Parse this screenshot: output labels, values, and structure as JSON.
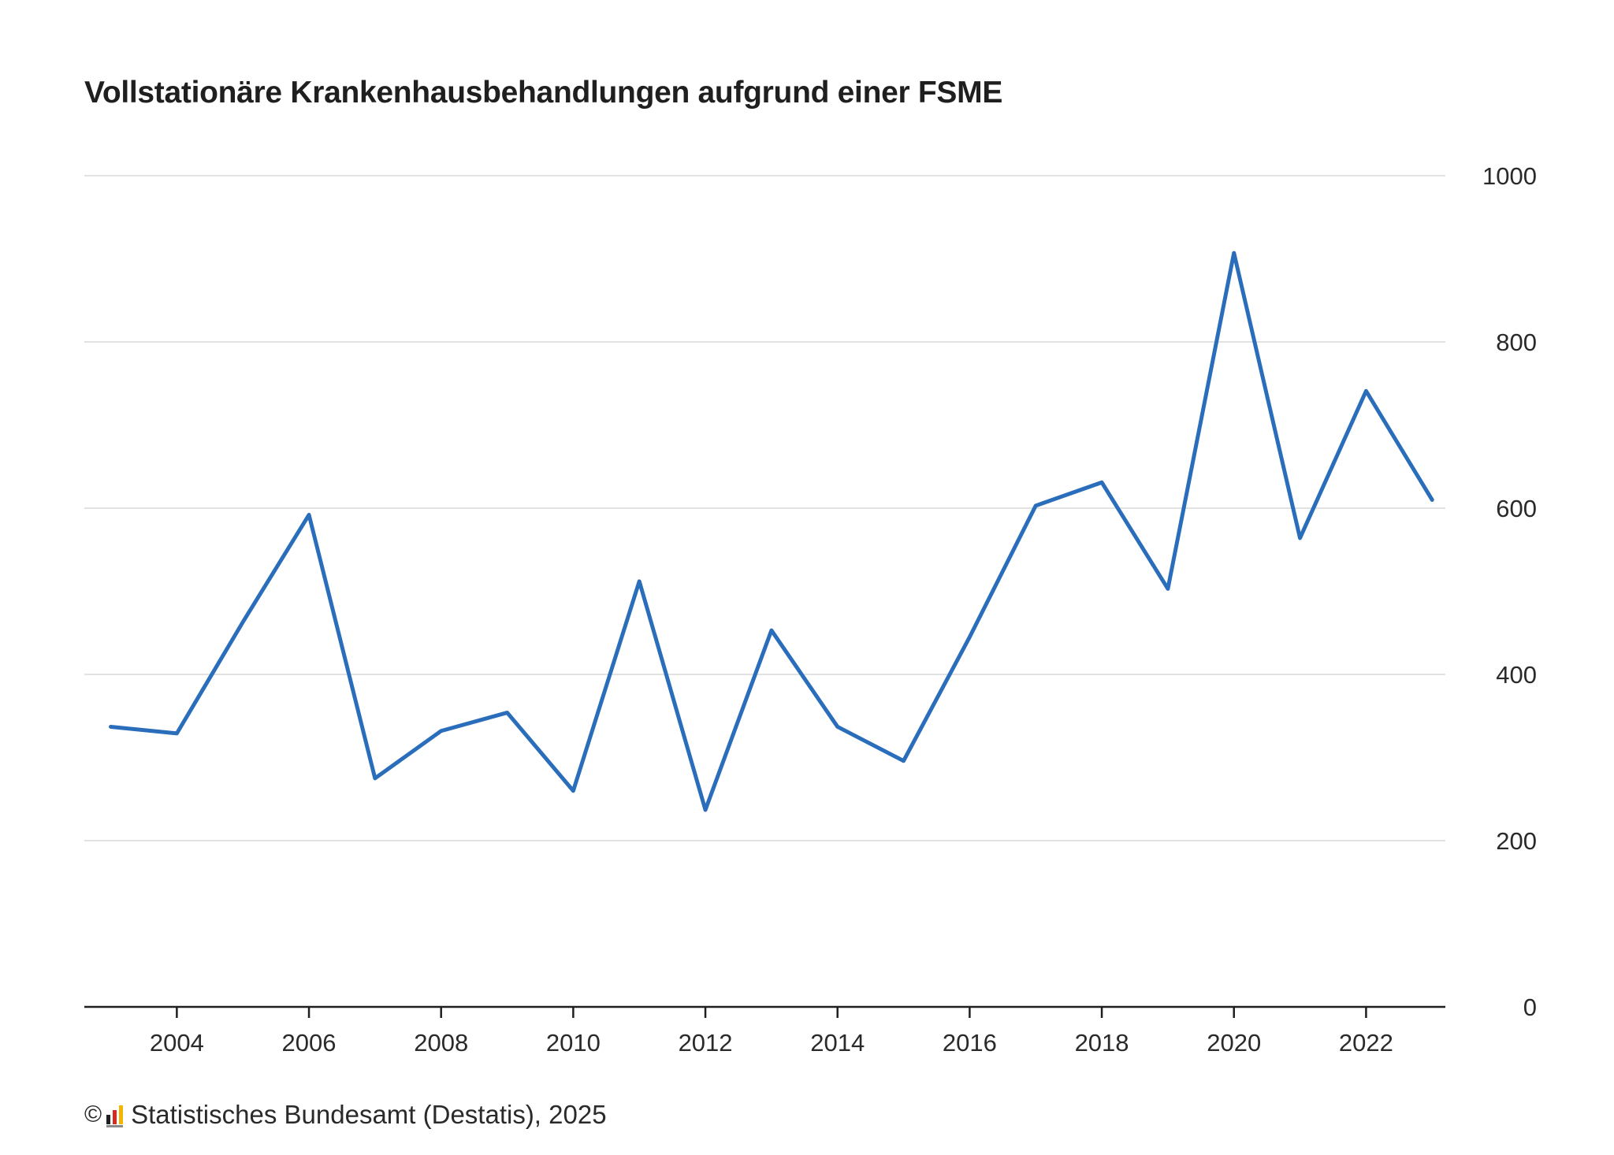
{
  "chart_data": {
    "type": "line",
    "title": "Vollstationäre Krankenhausbehandlungen aufgrund einer FSME",
    "xlabel": "",
    "ylabel": "",
    "x": [
      2003,
      2004,
      2005,
      2006,
      2007,
      2008,
      2009,
      2010,
      2011,
      2012,
      2013,
      2014,
      2015,
      2016,
      2017,
      2018,
      2019,
      2020,
      2021,
      2022,
      2023
    ],
    "x_ticks": [
      "2004",
      "2006",
      "2008",
      "2010",
      "2012",
      "2014",
      "2016",
      "2018",
      "2020",
      "2022"
    ],
    "y_ticks": [
      "0",
      "200",
      "400",
      "600",
      "800",
      "1000"
    ],
    "ylim": [
      0,
      1000
    ],
    "xlim": [
      2002.6,
      2023.2
    ],
    "y_axis_position": "right",
    "grid": "horizontal",
    "series": [
      {
        "values": [
          337,
          329,
          463,
          592,
          275,
          332,
          354,
          260,
          512,
          237,
          453,
          337,
          296,
          445,
          603,
          631,
          503,
          907,
          564,
          741,
          610
        ],
        "color": "#2a6ebb"
      }
    ]
  },
  "footer": {
    "copyright_symbol": "©",
    "source": "Statistisches Bundesamt (Destatis), 2025"
  },
  "colors": {
    "line": "#2a6ebb",
    "grid": "#d9d9d9",
    "axis": "#1f1f1f"
  }
}
